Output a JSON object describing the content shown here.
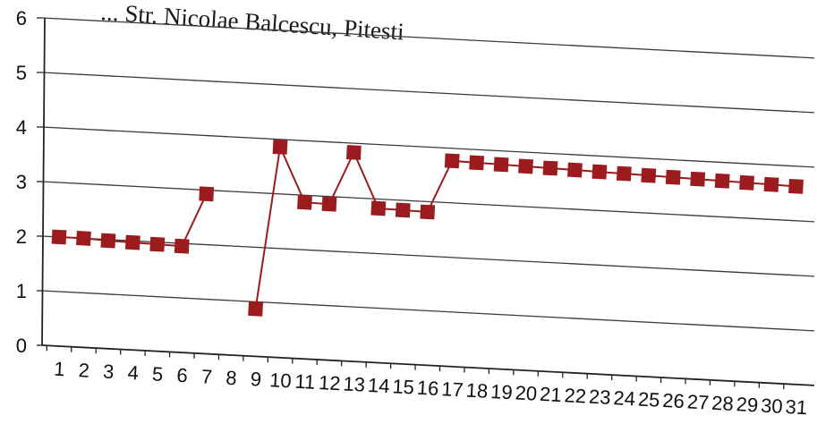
{
  "chart_data": {
    "type": "line",
    "title": "... Str. Nicolae Balcescu, Pitesti",
    "xlabel": "",
    "ylabel": "",
    "ylim": [
      0,
      6
    ],
    "yticks": [
      0,
      1,
      2,
      3,
      4,
      5,
      6
    ],
    "grid": true,
    "legend": "none",
    "categories": [
      "1",
      "2",
      "3",
      "4",
      "5",
      "6",
      "7",
      "8",
      "9",
      "10",
      "11",
      "12",
      "13",
      "14",
      "15",
      "16",
      "17",
      "18",
      "19",
      "20",
      "21",
      "22",
      "23",
      "24",
      "25",
      "26",
      "27",
      "28",
      "29",
      "30",
      "31"
    ],
    "series": [
      {
        "color": "#9b1b1f",
        "marker": "square",
        "values": [
          2.0,
          2.0,
          1.98,
          1.97,
          1.96,
          1.95,
          2.93,
          null,
          0.87,
          3.86,
          2.87,
          2.86,
          3.83,
          2.83,
          2.82,
          2.81,
          3.77,
          3.76,
          3.75,
          3.74,
          3.73,
          3.72,
          3.71,
          3.7,
          3.69,
          3.68,
          3.67,
          3.66,
          3.65,
          3.64,
          3.63
        ]
      }
    ]
  }
}
